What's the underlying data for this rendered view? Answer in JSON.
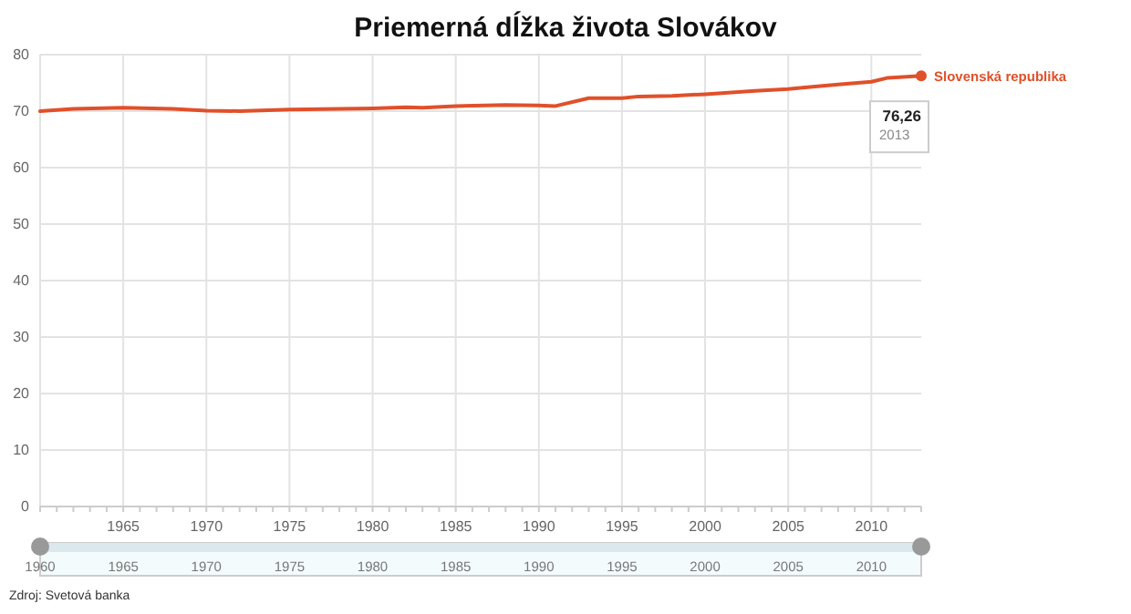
{
  "chart_data": {
    "type": "line",
    "title": "Priemerná dĺžka života Slovákov",
    "x": [
      1960,
      1962,
      1965,
      1968,
      1970,
      1972,
      1975,
      1978,
      1980,
      1982,
      1983,
      1985,
      1988,
      1990,
      1991,
      1993,
      1995,
      1996,
      1998,
      2000,
      2002,
      2003,
      2005,
      2006,
      2008,
      2010,
      2011,
      2013
    ],
    "series": [
      {
        "name": "Slovenská republika",
        "color": "#e0502a",
        "values": [
          70.0,
          70.4,
          70.6,
          70.4,
          70.1,
          70.0,
          70.3,
          70.4,
          70.5,
          70.7,
          70.6,
          70.9,
          71.1,
          71.0,
          70.9,
          72.3,
          72.3,
          72.6,
          72.7,
          73.0,
          73.4,
          73.6,
          73.9,
          74.2,
          74.7,
          75.2,
          75.9,
          76.26
        ]
      }
    ],
    "xlim": [
      1960,
      2013
    ],
    "xticks": [
      {
        "value": 1960,
        "label": null
      },
      1965,
      1970,
      1975,
      1980,
      1985,
      1990,
      1995,
      2000,
      2005,
      2010
    ],
    "ylim": [
      0,
      80
    ],
    "yticks": [
      0,
      10,
      20,
      30,
      40,
      50,
      60,
      70,
      80
    ],
    "grid": true,
    "legend": false,
    "marker": "none",
    "line_style": "solid",
    "annotations": [
      {
        "text": "76,26",
        "x": 2013,
        "y": 76.26
      },
      "2013",
      "Zdroj: Svetová banka"
    ],
    "x2lim": [
      1960,
      2013
    ],
    "x2ticks": [
      1960,
      1965,
      1970,
      1975,
      1980,
      1985,
      1990,
      1995,
      2000,
      2005,
      2010
    ]
  }
}
